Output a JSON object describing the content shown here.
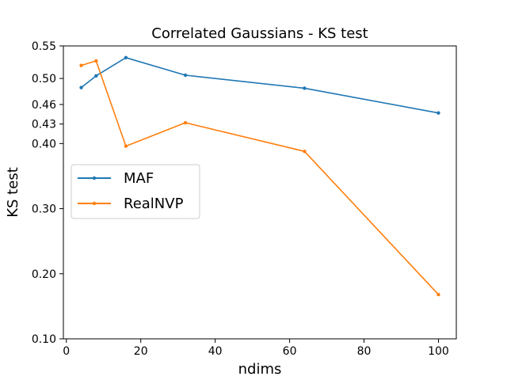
{
  "chart_data": {
    "type": "line",
    "title": "Correlated Gaussians - KS test",
    "xlabel": "ndims",
    "ylabel": "KS test",
    "xlim": [
      -0.8,
      104.8
    ],
    "ylim": [
      0.1,
      0.55
    ],
    "xticks": [
      0,
      20,
      40,
      60,
      80,
      100
    ],
    "xtick_labels": [
      "0",
      "20",
      "40",
      "60",
      "80",
      "100"
    ],
    "yticks": [
      0.1,
      0.2,
      0.3,
      0.4,
      0.43,
      0.46,
      0.5,
      0.55
    ],
    "ytick_labels": [
      "0.10",
      "0.20",
      "0.30",
      "0.40",
      "0.43",
      "0.46",
      "0.50",
      "0.55"
    ],
    "grid": false,
    "legend_position": "center-left",
    "x": [
      4,
      8,
      16,
      32,
      64,
      100
    ],
    "series": [
      {
        "name": "MAF",
        "color": "#1f77b4",
        "values": [
          0.486,
          0.504,
          0.532,
          0.505,
          0.485,
          0.447
        ]
      },
      {
        "name": "RealNVP",
        "color": "#ff7f0e",
        "values": [
          0.52,
          0.527,
          0.396,
          0.432,
          0.388,
          0.168
        ]
      }
    ]
  }
}
